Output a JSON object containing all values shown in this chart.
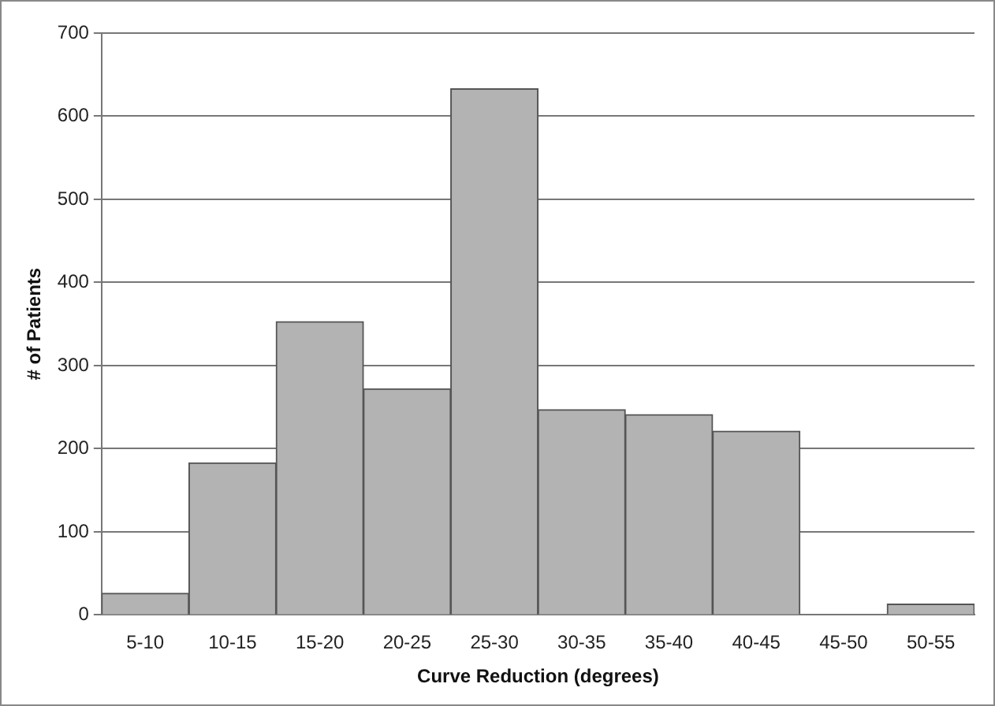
{
  "chart_data": {
    "type": "bar",
    "xlabel": "Curve Reduction (degrees)",
    "ylabel": "# of Patients",
    "categories": [
      "5-10",
      "10-15",
      "15-20",
      "20-25",
      "25-30",
      "30-35",
      "35-40",
      "40-45",
      "45-50",
      "50-55"
    ],
    "values": [
      26,
      183,
      353,
      272,
      633,
      247,
      241,
      221,
      0,
      13
    ],
    "color": "#b3b3b3",
    "ylim": [
      0,
      700
    ],
    "yticks": [
      0,
      100,
      200,
      300,
      400,
      500,
      600,
      700
    ],
    "grid": "y",
    "legend": false
  }
}
